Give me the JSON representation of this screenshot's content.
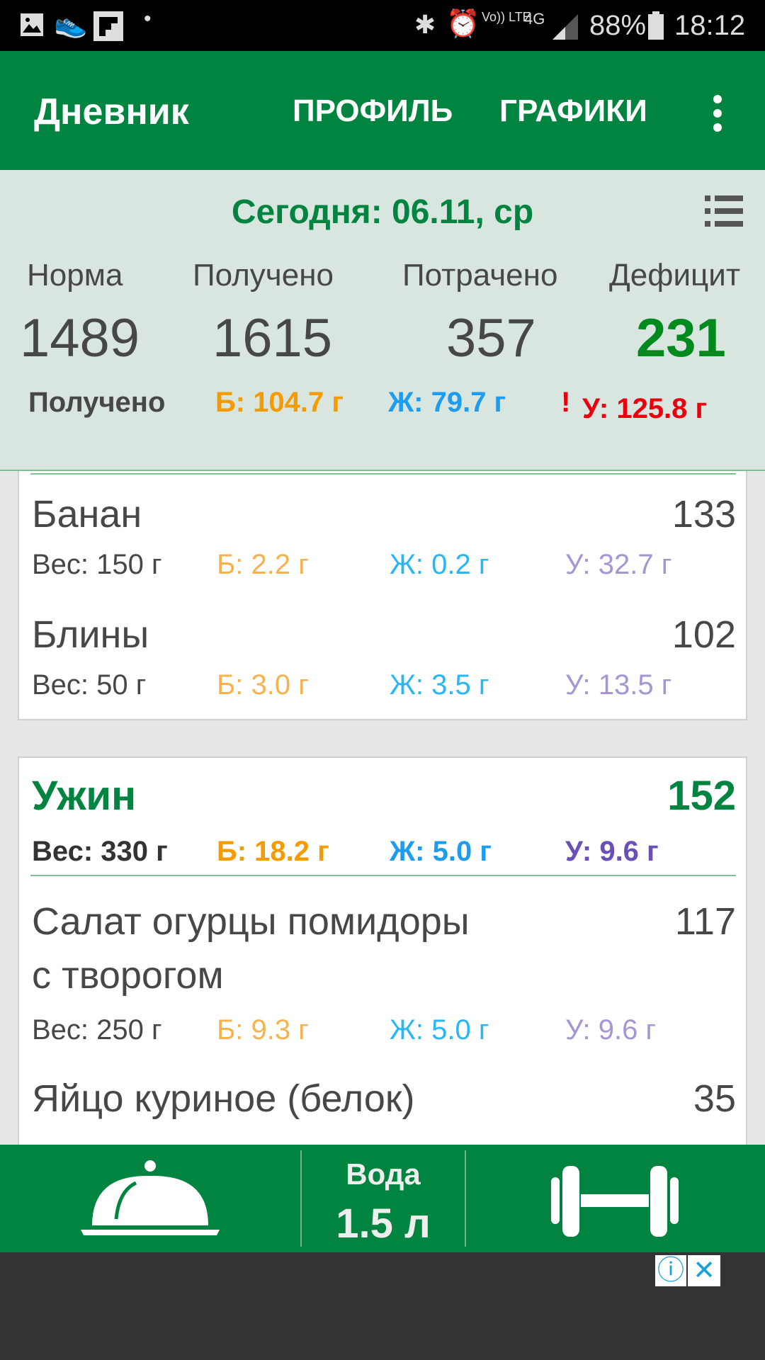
{
  "status_bar": {
    "time": "18:12",
    "battery": "88%",
    "network": "4G",
    "volte": "Vo)) LTE",
    "icons": [
      "image-icon",
      "sneaker-icon",
      "flipboard-icon",
      "dot-icon",
      "bluetooth-icon",
      "alarm-icon",
      "signal-icon",
      "battery-icon"
    ]
  },
  "app_bar": {
    "title": "Дневник",
    "tabs": [
      "ПРОФИЛЬ",
      "ГРАФИКИ"
    ],
    "menu_icon": "more-vert-icon"
  },
  "summary": {
    "date": "Сегодня: 06.11, ср",
    "list_icon": "list-icon",
    "columns": [
      {
        "label": "Норма",
        "value": "1489"
      },
      {
        "label": "Получено",
        "value": "1615"
      },
      {
        "label": "Потрачено",
        "value": "357"
      },
      {
        "label": "Дефицит",
        "value": "231"
      }
    ],
    "macros_label": "Получено",
    "protein": "Б: 104.7 г",
    "fat": "Ж: 79.7 г",
    "carbs_warning": "!",
    "carbs": "У: 125.8 г"
  },
  "meals": [
    {
      "items": [
        {
          "name": "Банан",
          "kcal": "133",
          "weight": "Вес: 150 г",
          "protein": "Б: 2.2 г",
          "fat": "Ж: 0.2 г",
          "carbs": "У: 32.7 г"
        },
        {
          "name": "Блины",
          "kcal": "102",
          "weight": "Вес: 50 г",
          "protein": "Б: 3.0 г",
          "fat": "Ж: 3.5 г",
          "carbs": "У: 13.5 г"
        }
      ]
    },
    {
      "title": "Ужин",
      "kcal": "152",
      "weight": "Вес: 330 г",
      "protein": "Б: 18.2 г",
      "fat": "Ж: 5.0 г",
      "carbs": "У: 9.6 г",
      "items": [
        {
          "name": "Салат огурцы помидоры",
          "name2": "с творогом",
          "kcal": "117",
          "weight": "Вес: 250 г",
          "protein": "Б: 9.3 г",
          "fat": "Ж: 5.0 г",
          "carbs": "У: 9.6 г"
        },
        {
          "name": "Яйцо куриное (белок)",
          "kcal": "35"
        }
      ]
    }
  ],
  "bottom_bar": {
    "water_label": "Вода",
    "water_value": "1.5 л",
    "food_icon": "cloche-icon",
    "exercise_icon": "dumbbell-icon"
  },
  "ad": {
    "info_icon": "info-icon",
    "close_icon": "close-icon"
  },
  "colors": {
    "green": "#00843f",
    "protein": "#f59b00",
    "fat": "#1e9cf0",
    "carbs": "#6a4fb8",
    "warning": "#e8000e"
  }
}
